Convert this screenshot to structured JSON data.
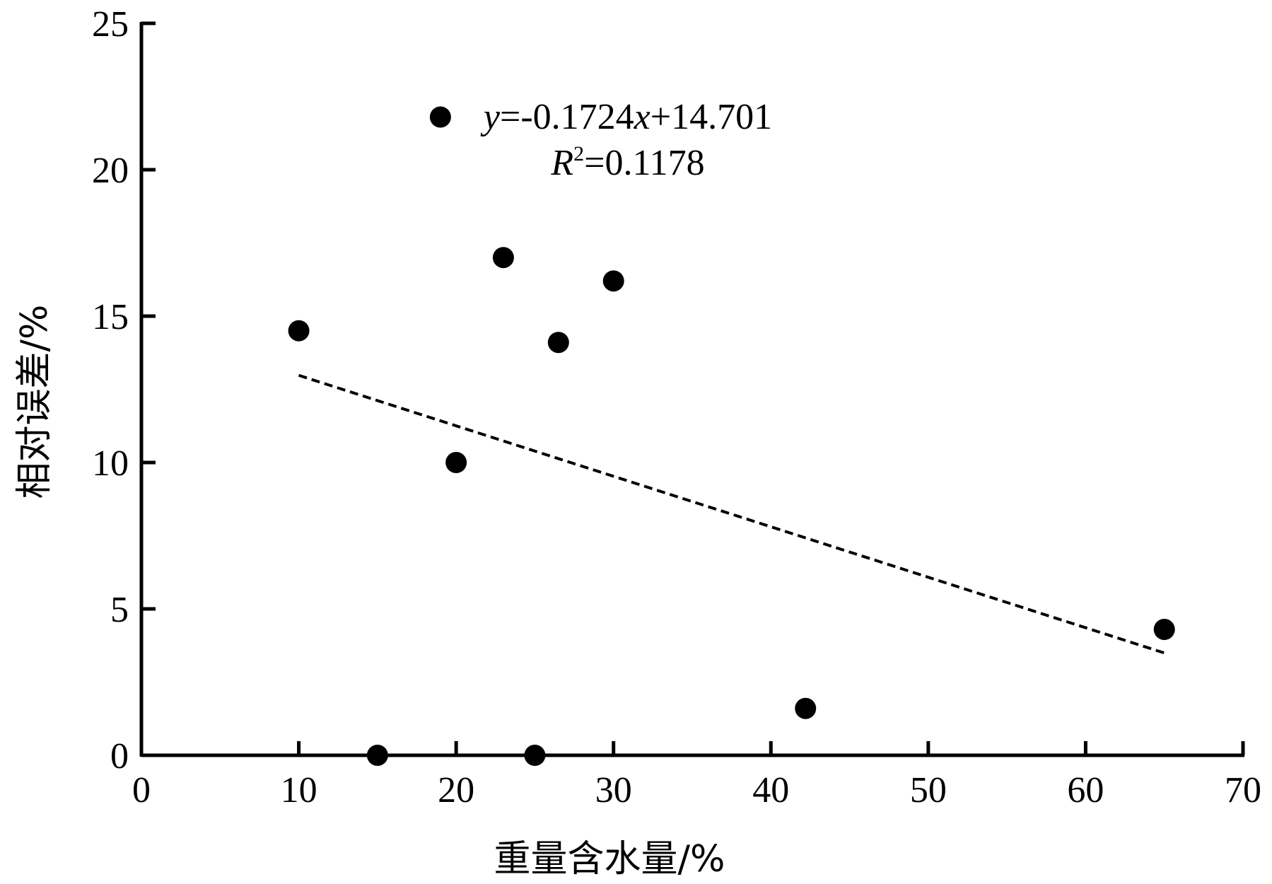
{
  "chart_data": {
    "type": "scatter",
    "xlabel": "重量含水量/%",
    "ylabel": "相对误差/%",
    "xlim": [
      0,
      70
    ],
    "ylim": [
      0,
      25
    ],
    "x_ticks": [
      0,
      10,
      20,
      30,
      40,
      50,
      60,
      70
    ],
    "y_ticks": [
      0,
      5,
      10,
      15,
      20,
      25
    ],
    "grid": false,
    "series": [
      {
        "points": [
          {
            "x": 10.0,
            "y": 14.5
          },
          {
            "x": 15.0,
            "y": 0.0
          },
          {
            "x": 19.0,
            "y": 21.8
          },
          {
            "x": 20.0,
            "y": 10.0
          },
          {
            "x": 23.0,
            "y": 17.0
          },
          {
            "x": 25.0,
            "y": 0.0
          },
          {
            "x": 26.5,
            "y": 14.1
          },
          {
            "x": 30.0,
            "y": 16.2
          },
          {
            "x": 42.2,
            "y": 1.6
          },
          {
            "x": 65.0,
            "y": 4.3
          }
        ]
      }
    ],
    "trendline": {
      "slope": -0.1724,
      "intercept": 14.701,
      "x_range": [
        10,
        65
      ],
      "style": "dashed",
      "equation_label": {
        "y_var": "y",
        "eq_part1": "=-0.1724",
        "x_var": "x",
        "eq_part2": "+14.701",
        "r_var": "R",
        "r_sup": "2",
        "r_value": "=0.1178"
      }
    }
  }
}
